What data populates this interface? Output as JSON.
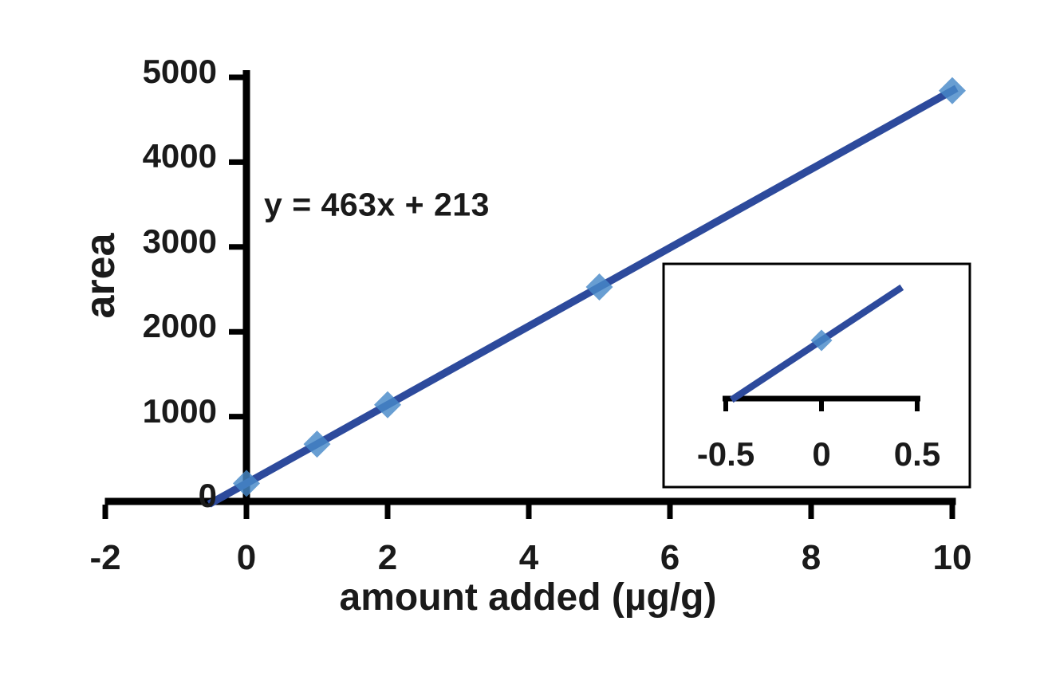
{
  "colors": {
    "background": "#ffffff",
    "axis": "#000000",
    "text": "#1a1a1a",
    "line": "#2d4a9c",
    "marker": "#4789c8",
    "inset_border": "#000000"
  },
  "chart_data": {
    "type": "scatter",
    "title": "",
    "xlabel": "amount added (µg/g)",
    "ylabel": "area",
    "annotation": "y = 463x + 213",
    "xlim": [
      -2,
      10
    ],
    "ylim": [
      0,
      5000
    ],
    "x_ticks": [
      -2,
      0,
      2,
      4,
      6,
      8,
      10
    ],
    "y_ticks": [
      0,
      1000,
      2000,
      3000,
      4000,
      5000
    ],
    "grid": false,
    "legend": false,
    "points": [
      {
        "x": 0,
        "y": 213
      },
      {
        "x": 1,
        "y": 676
      },
      {
        "x": 2,
        "y": 1139
      },
      {
        "x": 5,
        "y": 2528
      },
      {
        "x": 10,
        "y": 4843
      }
    ],
    "trendline": {
      "slope": 463,
      "intercept": 213,
      "x_start": -0.53,
      "x_end": 10.06
    },
    "inset": {
      "xlim": [
        -0.5,
        0.5
      ],
      "x_ticks": [
        -0.5,
        0,
        0.5
      ],
      "points": [
        {
          "x": 0,
          "y": 213
        }
      ],
      "trendline": {
        "slope": 463,
        "intercept": 213,
        "x_start": -0.47,
        "x_end": 0.42
      }
    }
  }
}
